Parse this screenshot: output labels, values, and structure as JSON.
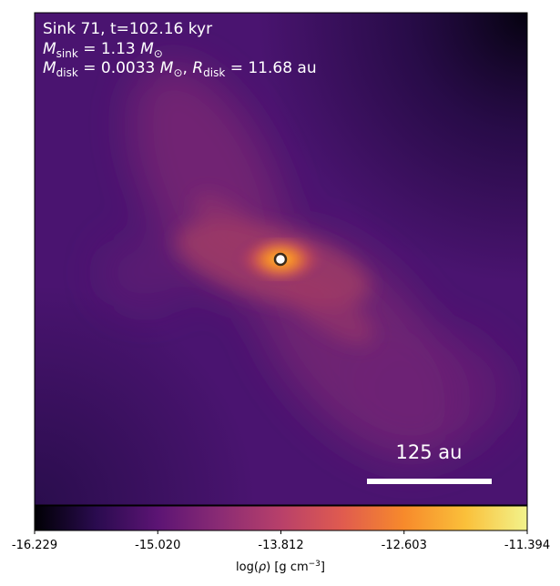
{
  "annotations": {
    "line1": "Sink 71, t=102.16 kyr",
    "line2_label": "M",
    "line2_sub": "sink",
    "line2_eq": " = 1.13 ",
    "line2_unit": "M",
    "line2_unit_sub": "⊙",
    "line3_label": "M",
    "line3_sub": "disk",
    "line3_eq": " = 0.0033 ",
    "line3_unit": "M",
    "line3_unit_sub": "⊙",
    "line3_sep": ", ",
    "line3_r": "R",
    "line3_rsub": "disk",
    "line3_req": " = 11.68 au"
  },
  "scalebar": {
    "label": "125 au"
  },
  "colorbar": {
    "ticks": [
      "-16.229",
      "-15.020",
      "-13.812",
      "-12.603",
      "-11.394"
    ],
    "label_prefix": "log(",
    "label_rho": "ρ",
    "label_mid": ") [g cm",
    "label_exp": "−3",
    "label_suffix": "]",
    "colormap": "inferno-like",
    "colors": [
      "#000004",
      "#2a0b4f",
      "#5c1474",
      "#8a2b74",
      "#b8406a",
      "#e05b4f",
      "#f78a2b",
      "#fac03a",
      "#f2f38c"
    ]
  },
  "image": {
    "background_color": "#3b0d5c",
    "sink_marker_color": "#ffffff"
  }
}
